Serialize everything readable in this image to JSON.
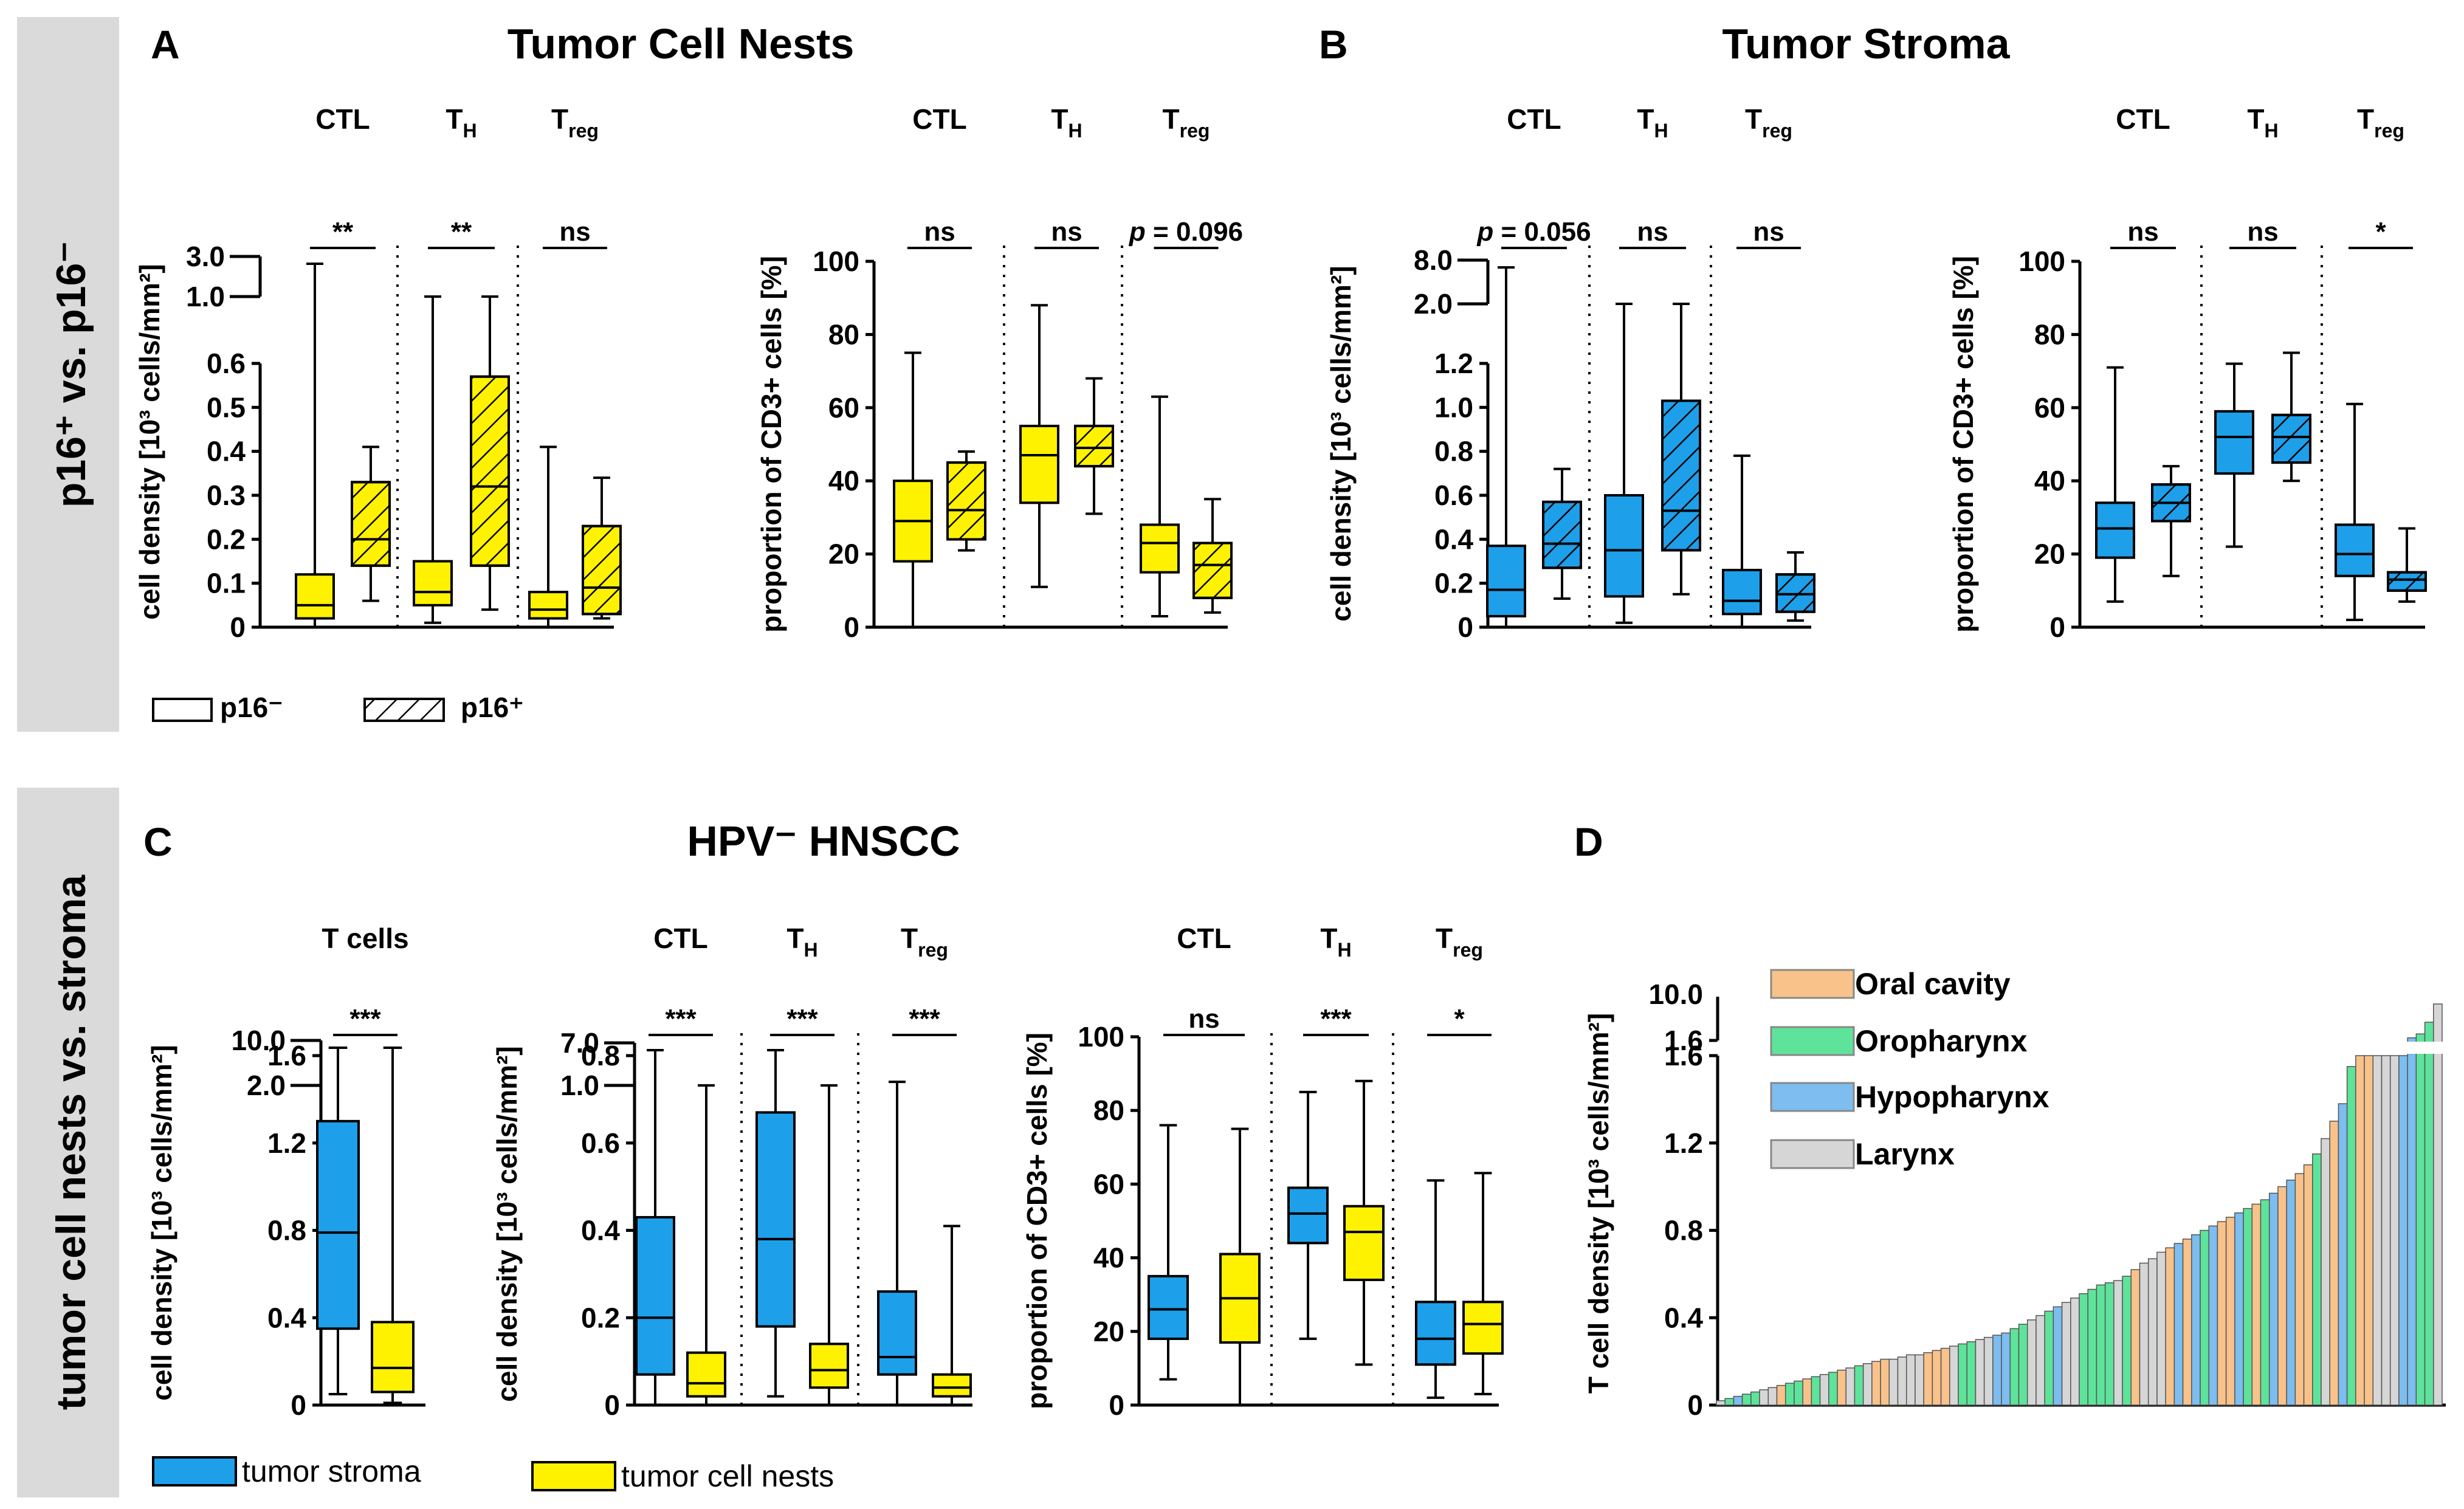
{
  "section_labels": {
    "top": "p16⁺ vs. p16⁻",
    "bottom": "tumor cell nests vs. stroma"
  },
  "panels": {
    "A": {
      "letter": "A",
      "title": "Tumor Cell Nests"
    },
    "B": {
      "letter": "B",
      "title": "Tumor Stroma"
    },
    "C": {
      "letter": "C",
      "title": "HPV⁻ HNSCC"
    },
    "D": {
      "letter": "D"
    }
  },
  "legends": {
    "p16": [
      {
        "label": "p16⁻",
        "style": "plain"
      },
      {
        "label": "p16⁺",
        "style": "hatched"
      }
    ],
    "site": [
      {
        "label": "tumor stroma",
        "color": "#1E9FEA"
      },
      {
        "label": "tumor cell nests",
        "color": "#FFF200"
      }
    ],
    "location": [
      {
        "label": "Oral cavity",
        "color": "#F8C28A"
      },
      {
        "label": "Oropharynx",
        "color": "#5EE39A"
      },
      {
        "label": "Hypopharynx",
        "color": "#7DBDF0"
      },
      {
        "label": "Larynx",
        "color": "#D6D6D6"
      }
    ]
  },
  "colors": {
    "yellow": "#FFF200",
    "blue": "#1E9FEA",
    "black": "#000000"
  },
  "chart_data": [
    {
      "id": "A1",
      "type": "boxplot",
      "panel": "A",
      "ylabel": "cell density [10³ cells/mm²]",
      "yticks": [
        "0",
        "0.1",
        "0.2",
        "0.3",
        "0.4",
        "0.5",
        "0.6"
      ],
      "broken_ticks": [
        "1.0",
        "3.0"
      ],
      "groups": [
        "CTL",
        "T_H",
        "T_reg"
      ],
      "stats": [
        "**",
        "**",
        "ns"
      ],
      "series": [
        {
          "name": "CTL p16⁻",
          "group": "CTL",
          "hatched": false,
          "color": "yellow",
          "min": 0,
          "q1": 0.02,
          "median": 0.05,
          "q3": 0.12,
          "max": 2.8
        },
        {
          "name": "CTL p16⁺",
          "group": "CTL",
          "hatched": true,
          "color": "yellow",
          "min": 0.06,
          "q1": 0.14,
          "median": 0.2,
          "q3": 0.33,
          "max": 0.41
        },
        {
          "name": "T_H p16⁻",
          "group": "T_H",
          "hatched": false,
          "color": "yellow",
          "min": 0.01,
          "q1": 0.05,
          "median": 0.08,
          "q3": 0.15,
          "max": 1.0
        },
        {
          "name": "T_H p16⁺",
          "group": "T_H",
          "hatched": true,
          "color": "yellow",
          "min": 0.04,
          "q1": 0.14,
          "median": 0.32,
          "q3": 0.57,
          "max": 1.0
        },
        {
          "name": "T_reg p16⁻",
          "group": "T_reg",
          "hatched": false,
          "color": "yellow",
          "min": 0.0,
          "q1": 0.02,
          "median": 0.04,
          "q3": 0.08,
          "max": 0.41
        },
        {
          "name": "T_reg p16⁺",
          "group": "T_reg",
          "hatched": true,
          "color": "yellow",
          "min": 0.02,
          "q1": 0.03,
          "median": 0.09,
          "q3": 0.23,
          "max": 0.34
        }
      ]
    },
    {
      "id": "A2",
      "type": "boxplot",
      "panel": "A",
      "ylabel": "proportion of CD3+ cells [%]",
      "yticks": [
        "0",
        "20",
        "40",
        "60",
        "80",
        "100"
      ],
      "groups": [
        "CTL",
        "T_H",
        "T_reg"
      ],
      "stats": [
        "ns",
        "ns",
        "p = 0.096"
      ],
      "series": [
        {
          "name": "CTL p16⁻",
          "group": "CTL",
          "hatched": false,
          "color": "yellow",
          "min": 0,
          "q1": 18,
          "median": 29,
          "q3": 40,
          "max": 75
        },
        {
          "name": "CTL p16⁺",
          "group": "CTL",
          "hatched": true,
          "color": "yellow",
          "min": 21,
          "q1": 24,
          "median": 32,
          "q3": 45,
          "max": 48
        },
        {
          "name": "T_H p16⁻",
          "group": "T_H",
          "hatched": false,
          "color": "yellow",
          "min": 11,
          "q1": 34,
          "median": 47,
          "q3": 55,
          "max": 88
        },
        {
          "name": "T_H p16⁺",
          "group": "T_H",
          "hatched": true,
          "color": "yellow",
          "min": 31,
          "q1": 44,
          "median": 49,
          "q3": 55,
          "max": 68
        },
        {
          "name": "T_reg p16⁻",
          "group": "T_reg",
          "hatched": false,
          "color": "yellow",
          "min": 3,
          "q1": 15,
          "median": 23,
          "q3": 28,
          "max": 63
        },
        {
          "name": "T_reg p16⁺",
          "group": "T_reg",
          "hatched": true,
          "color": "yellow",
          "min": 4,
          "q1": 8,
          "median": 17,
          "q3": 23,
          "max": 35
        }
      ]
    },
    {
      "id": "B1",
      "type": "boxplot",
      "panel": "B",
      "ylabel": "cell density [10³ cells/mm²]",
      "yticks": [
        "0",
        "0.2",
        "0.4",
        "0.6",
        "0.8",
        "1.0",
        "1.2"
      ],
      "broken_ticks": [
        "2.0",
        "8.0"
      ],
      "groups": [
        "CTL",
        "T_H",
        "T_reg"
      ],
      "stats": [
        "p = 0.056",
        "ns",
        "ns"
      ],
      "series": [
        {
          "name": "CTL p16⁻",
          "group": "CTL",
          "hatched": false,
          "color": "blue",
          "min": 0,
          "q1": 0.05,
          "median": 0.17,
          "q3": 0.37,
          "max": 7.8
        },
        {
          "name": "CTL p16⁺",
          "group": "CTL",
          "hatched": true,
          "color": "blue",
          "min": 0.13,
          "q1": 0.27,
          "median": 0.38,
          "q3": 0.57,
          "max": 0.72
        },
        {
          "name": "T_H p16⁻",
          "group": "T_H",
          "hatched": false,
          "color": "blue",
          "min": 0.02,
          "q1": 0.14,
          "median": 0.35,
          "q3": 0.6,
          "max": 2.0
        },
        {
          "name": "T_H p16⁺",
          "group": "T_H",
          "hatched": true,
          "color": "blue",
          "min": 0.15,
          "q1": 0.35,
          "median": 0.53,
          "q3": 1.03,
          "max": 2.0
        },
        {
          "name": "T_reg p16⁻",
          "group": "T_reg",
          "hatched": false,
          "color": "blue",
          "min": 0,
          "q1": 0.06,
          "median": 0.12,
          "q3": 0.26,
          "max": 0.78
        },
        {
          "name": "T_reg p16⁺",
          "group": "T_reg",
          "hatched": true,
          "color": "blue",
          "min": 0.03,
          "q1": 0.07,
          "median": 0.15,
          "q3": 0.24,
          "max": 0.34
        }
      ]
    },
    {
      "id": "B2",
      "type": "boxplot",
      "panel": "B",
      "ylabel": "proportion of CD3+ cells [%]",
      "yticks": [
        "0",
        "20",
        "40",
        "60",
        "80",
        "100"
      ],
      "groups": [
        "CTL",
        "T_H",
        "T_reg"
      ],
      "stats": [
        "ns",
        "ns",
        "*"
      ],
      "series": [
        {
          "name": "CTL p16⁻",
          "group": "CTL",
          "hatched": false,
          "color": "blue",
          "min": 7,
          "q1": 19,
          "median": 27,
          "q3": 34,
          "max": 71
        },
        {
          "name": "CTL p16⁺",
          "group": "CTL",
          "hatched": true,
          "color": "blue",
          "min": 14,
          "q1": 29,
          "median": 34,
          "q3": 39,
          "max": 44
        },
        {
          "name": "T_H p16⁻",
          "group": "T_H",
          "hatched": false,
          "color": "blue",
          "min": 22,
          "q1": 42,
          "median": 52,
          "q3": 59,
          "max": 72
        },
        {
          "name": "T_H p16⁺",
          "group": "T_H",
          "hatched": true,
          "color": "blue",
          "min": 40,
          "q1": 45,
          "median": 52,
          "q3": 58,
          "max": 75
        },
        {
          "name": "T_reg p16⁻",
          "group": "T_reg",
          "hatched": false,
          "color": "blue",
          "min": 2,
          "q1": 14,
          "median": 20,
          "q3": 28,
          "max": 61
        },
        {
          "name": "T_reg p16⁺",
          "group": "T_reg",
          "hatched": true,
          "color": "blue",
          "min": 7,
          "q1": 10,
          "median": 13,
          "q3": 15,
          "max": 27
        }
      ]
    },
    {
      "id": "C1",
      "type": "boxplot",
      "panel": "C",
      "header": "T cells",
      "ylabel": "cell density [10³ cells/mm²]",
      "yticks": [
        "0",
        "0.4",
        "0.8",
        "1.2",
        "1.6"
      ],
      "broken_ticks": [
        "2.0",
        "10.0"
      ],
      "groups": [
        "T cells"
      ],
      "stats": [
        "***"
      ],
      "series": [
        {
          "name": "tumor stroma",
          "group": "T cells",
          "hatched": false,
          "color": "blue",
          "min": 0.05,
          "q1": 0.35,
          "median": 0.79,
          "q3": 1.3,
          "max": 9.5
        },
        {
          "name": "tumor cell nests",
          "group": "T cells",
          "hatched": false,
          "color": "yellow",
          "min": 0.01,
          "q1": 0.06,
          "median": 0.17,
          "q3": 0.38,
          "max": 3.5
        }
      ]
    },
    {
      "id": "C2",
      "type": "boxplot",
      "panel": "C",
      "ylabel": "cell density [10³ cells/mm²]",
      "yticks": [
        "0",
        "0.2",
        "0.4",
        "0.6",
        "0.8"
      ],
      "broken_ticks": [
        "1.0",
        "7.0"
      ],
      "groups": [
        "CTL",
        "T_H",
        "T_reg"
      ],
      "stats": [
        "***",
        "***",
        "***"
      ],
      "series": [
        {
          "name": "CTL stroma",
          "group": "CTL",
          "hatched": false,
          "color": "blue",
          "min": 0,
          "q1": 0.07,
          "median": 0.2,
          "q3": 0.43,
          "max": 6.8
        },
        {
          "name": "CTL nests",
          "group": "CTL",
          "hatched": false,
          "color": "yellow",
          "min": 0,
          "q1": 0.02,
          "median": 0.05,
          "q3": 0.12,
          "max": 1.9
        },
        {
          "name": "T_H stroma",
          "group": "T_H",
          "hatched": false,
          "color": "blue",
          "min": 0.02,
          "q1": 0.18,
          "median": 0.38,
          "q3": 0.67,
          "max": 5.8
        },
        {
          "name": "T_H nests",
          "group": "T_H",
          "hatched": false,
          "color": "yellow",
          "min": 0,
          "q1": 0.04,
          "median": 0.08,
          "q3": 0.14,
          "max": 1.0
        },
        {
          "name": "T_reg stroma",
          "group": "T_reg",
          "hatched": false,
          "color": "blue",
          "min": 0,
          "q1": 0.07,
          "median": 0.11,
          "q3": 0.26,
          "max": 0.74
        },
        {
          "name": "T_reg nests",
          "group": "T_reg",
          "hatched": false,
          "color": "yellow",
          "min": 0,
          "q1": 0.02,
          "median": 0.04,
          "q3": 0.07,
          "max": 0.41
        }
      ]
    },
    {
      "id": "C3",
      "type": "boxplot",
      "panel": "C",
      "ylabel": "proportion of CD3+ cells [%]",
      "yticks": [
        "0",
        "20",
        "40",
        "60",
        "80",
        "100"
      ],
      "groups": [
        "CTL",
        "T_H",
        "T_reg"
      ],
      "stats": [
        "ns",
        "***",
        "*"
      ],
      "series": [
        {
          "name": "CTL stroma",
          "group": "CTL",
          "hatched": false,
          "color": "blue",
          "min": 7,
          "q1": 18,
          "median": 26,
          "q3": 35,
          "max": 76
        },
        {
          "name": "CTL nests",
          "group": "CTL",
          "hatched": false,
          "color": "yellow",
          "min": 0,
          "q1": 17,
          "median": 29,
          "q3": 41,
          "max": 75
        },
        {
          "name": "T_H stroma",
          "group": "T_H",
          "hatched": false,
          "color": "blue",
          "min": 18,
          "q1": 44,
          "median": 52,
          "q3": 59,
          "max": 85
        },
        {
          "name": "T_H nests",
          "group": "T_H",
          "hatched": false,
          "color": "yellow",
          "min": 11,
          "q1": 34,
          "median": 47,
          "q3": 54,
          "max": 88
        },
        {
          "name": "T_reg stroma",
          "group": "T_reg",
          "hatched": false,
          "color": "blue",
          "min": 2,
          "q1": 11,
          "median": 18,
          "q3": 28,
          "max": 61
        },
        {
          "name": "T_reg nests",
          "group": "T_reg",
          "hatched": false,
          "color": "yellow",
          "min": 3,
          "q1": 14,
          "median": 22,
          "q3": 28,
          "max": 63
        }
      ]
    },
    {
      "id": "D",
      "type": "bar",
      "panel": "D",
      "ylabel": "T cell density [10³ cells/mm²]",
      "yticks": [
        "0",
        "0.4",
        "0.8",
        "1.2",
        "1.6"
      ],
      "broken_ticks": [
        "1.6",
        "10.0"
      ],
      "categories_note": "one bar per patient, sorted ascending",
      "values": [
        0.02,
        0.03,
        0.04,
        0.05,
        0.06,
        0.07,
        0.08,
        0.09,
        0.1,
        0.11,
        0.12,
        0.13,
        0.14,
        0.15,
        0.16,
        0.17,
        0.18,
        0.19,
        0.2,
        0.21,
        0.21,
        0.22,
        0.23,
        0.23,
        0.24,
        0.25,
        0.26,
        0.27,
        0.28,
        0.29,
        0.3,
        0.31,
        0.32,
        0.33,
        0.35,
        0.37,
        0.39,
        0.41,
        0.43,
        0.45,
        0.47,
        0.49,
        0.51,
        0.53,
        0.55,
        0.56,
        0.57,
        0.59,
        0.62,
        0.65,
        0.67,
        0.7,
        0.72,
        0.74,
        0.76,
        0.78,
        0.8,
        0.82,
        0.84,
        0.86,
        0.88,
        0.9,
        0.92,
        0.94,
        0.97,
        1.0,
        1.03,
        1.06,
        1.1,
        1.15,
        1.22,
        1.3,
        1.38,
        1.55,
        1.6,
        1.6,
        1.6,
        1.6,
        1.6,
        1.6,
        1.7,
        1.85,
        2.3,
        3.0
      ],
      "sites": [
        "L",
        "O",
        "H",
        "O",
        "O",
        "L",
        "L",
        "C",
        "O",
        "O",
        "C",
        "O",
        "L",
        "O",
        "C",
        "L",
        "O",
        "L",
        "C",
        "C",
        "L",
        "L",
        "L",
        "L",
        "C",
        "C",
        "C",
        "L",
        "O",
        "O",
        "L",
        "L",
        "H",
        "H",
        "O",
        "O",
        "L",
        "L",
        "O",
        "H",
        "L",
        "L",
        "O",
        "O",
        "O",
        "O",
        "L",
        "O",
        "C",
        "L",
        "L",
        "L",
        "C",
        "H",
        "C",
        "H",
        "O",
        "H",
        "C",
        "C",
        "H",
        "O",
        "C",
        "O",
        "H",
        "C",
        "H",
        "C",
        "C",
        "O",
        "L",
        "C",
        "H",
        "O",
        "C",
        "C",
        "L",
        "L",
        "L",
        "H",
        "H",
        "O",
        "O",
        "L"
      ]
    }
  ]
}
